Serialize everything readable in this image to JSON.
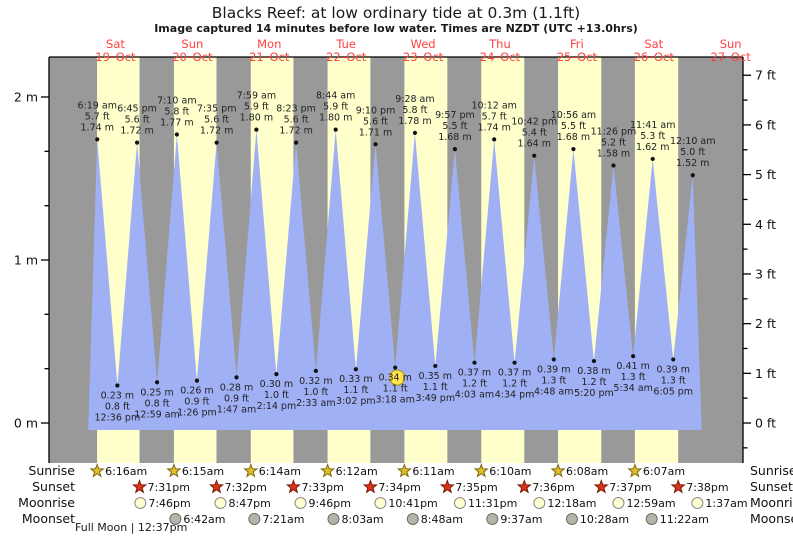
{
  "colors": {
    "day_band": "#ffffcc",
    "night_band": "#999999",
    "tide_fill": "#a0b0f5",
    "date_label": "#ff3f3f",
    "title_text": "#1a1a1a",
    "tide_label_text": "#222222",
    "sunrise_star": "#e2bf2a",
    "sunrise_star_stroke": "#7a6a10",
    "sunset_star": "#dd3318",
    "sunset_star_stroke": "#7a1a08",
    "moonrise_fill": "#ffffd0",
    "moonrise_stroke": "#8a8a8a",
    "moonset_fill": "#b4b4aa",
    "moonset_stroke": "#6e6e66",
    "current_marker": "#ffe44f",
    "current_marker_stroke": "#b08d00",
    "frame": "#000000",
    "dot": "#111111"
  },
  "chart_data": {
    "type": "area",
    "title": "Blacks Reef: at low  ordinary tide at 0.3m (1.1ft)",
    "subtitle": "Image captured 14 minutes before low water. Times are NZDT (UTC +13.0hrs)",
    "footnote": "Full Moon | 12:37pm",
    "y_axis": {
      "left_unit": "m",
      "left_ticks": [
        "0 m",
        "1 m",
        "2 m"
      ],
      "right_unit": "ft",
      "right_ticks": [
        "0 ft",
        "1 ft",
        "2 ft",
        "3 ft",
        "4 ft",
        "5 ft",
        "6 ft",
        "7 ft"
      ]
    },
    "days": [
      {
        "name": "Sat",
        "date": "19–Oct"
      },
      {
        "name": "Sun",
        "date": "20–Oct"
      },
      {
        "name": "Mon",
        "date": "21–Oct"
      },
      {
        "name": "Tue",
        "date": "22–Oct"
      },
      {
        "name": "Wed",
        "date": "23–Oct"
      },
      {
        "name": "Thu",
        "date": "24–Oct"
      },
      {
        "name": "Fri",
        "date": "25–Oct"
      },
      {
        "name": "Sat",
        "date": "26–Oct"
      },
      {
        "name": "Sun",
        "date": "27–Oct"
      }
    ],
    "tides": [
      {
        "kind": "H",
        "day": 0,
        "time": "6:19 am",
        "ft": "5.7 ft",
        "m": "1.74 m"
      },
      {
        "kind": "L",
        "day": 0,
        "time": "12:36 pm",
        "ft": "0.8 ft",
        "m": "0.23 m"
      },
      {
        "kind": "H",
        "day": 0,
        "time": "6:45 pm",
        "ft": "5.6 ft",
        "m": "1.72 m"
      },
      {
        "kind": "L",
        "day": 1,
        "time": "12:59 am",
        "ft": "0.8 ft",
        "m": "0.25 m"
      },
      {
        "kind": "H",
        "day": 1,
        "time": "7:10 am",
        "ft": "5.8 ft",
        "m": "1.77 m"
      },
      {
        "kind": "L",
        "day": 1,
        "time": "1:26 pm",
        "ft": "0.9 ft",
        "m": "0.26 m"
      },
      {
        "kind": "H",
        "day": 1,
        "time": "7:35 pm",
        "ft": "5.6 ft",
        "m": "1.72 m"
      },
      {
        "kind": "L",
        "day": 2,
        "time": "1:47 am",
        "ft": "0.9 ft",
        "m": "0.28 m"
      },
      {
        "kind": "H",
        "day": 2,
        "time": "7:59 am",
        "ft": "5.9 ft",
        "m": "1.80 m"
      },
      {
        "kind": "L",
        "day": 2,
        "time": "2:14 pm",
        "ft": "1.0 ft",
        "m": "0.30 m"
      },
      {
        "kind": "H",
        "day": 2,
        "time": "8:23 pm",
        "ft": "5.6 ft",
        "m": "1.72 m"
      },
      {
        "kind": "L",
        "day": 3,
        "time": "2:33 am",
        "ft": "1.0 ft",
        "m": "0.32 m"
      },
      {
        "kind": "H",
        "day": 3,
        "time": "8:44 am",
        "ft": "5.9 ft",
        "m": "1.80 m"
      },
      {
        "kind": "L",
        "day": 3,
        "time": "3:02 pm",
        "ft": "1.1 ft",
        "m": "0.33 m"
      },
      {
        "kind": "H",
        "day": 3,
        "time": "9:10 pm",
        "ft": "5.6 ft",
        "m": "1.71 m"
      },
      {
        "kind": "L",
        "day": 4,
        "time": "3:18 am",
        "ft": "1.1 ft",
        "m": "0.34 m",
        "current": true
      },
      {
        "kind": "H",
        "day": 4,
        "time": "9:28 am",
        "ft": "5.8 ft",
        "m": "1.78 m"
      },
      {
        "kind": "L",
        "day": 4,
        "time": "3:49 pm",
        "ft": "1.1 ft",
        "m": "0.35 m"
      },
      {
        "kind": "H",
        "day": 4,
        "time": "9:57 pm",
        "ft": "5.5 ft",
        "m": "1.68 m"
      },
      {
        "kind": "L",
        "day": 5,
        "time": "4:03 am",
        "ft": "1.2 ft",
        "m": "0.37 m"
      },
      {
        "kind": "H",
        "day": 5,
        "time": "10:12 am",
        "ft": "5.7 ft",
        "m": "1.74 m"
      },
      {
        "kind": "L",
        "day": 5,
        "time": "4:34 pm",
        "ft": "1.2 ft",
        "m": "0.37 m"
      },
      {
        "kind": "H",
        "day": 5,
        "time": "10:42 pm",
        "ft": "5.4 ft",
        "m": "1.64 m"
      },
      {
        "kind": "L",
        "day": 6,
        "time": "4:48 am",
        "ft": "1.3 ft",
        "m": "0.39 m"
      },
      {
        "kind": "H",
        "day": 6,
        "time": "10:56 am",
        "ft": "5.5 ft",
        "m": "1.68 m"
      },
      {
        "kind": "L",
        "day": 6,
        "time": "5:20 pm",
        "ft": "1.2 ft",
        "m": "0.38 m"
      },
      {
        "kind": "H",
        "day": 6,
        "time": "11:26 pm",
        "ft": "5.2 ft",
        "m": "1.58 m"
      },
      {
        "kind": "L",
        "day": 7,
        "time": "5:34 am",
        "ft": "1.3 ft",
        "m": "0.41 m"
      },
      {
        "kind": "H",
        "day": 7,
        "time": "11:41 am",
        "ft": "5.3 ft",
        "m": "1.62 m"
      },
      {
        "kind": "L",
        "day": 7,
        "time": "6:05 pm",
        "ft": "1.3 ft",
        "m": "0.39 m"
      },
      {
        "kind": "H",
        "day": 8,
        "time": "12:10 am",
        "ft": "5.0 ft",
        "m": "1.52 m"
      }
    ],
    "sun_moon_rows": [
      {
        "label": "Sunrise",
        "icon": "sunrise-star-icon",
        "items": [
          {
            "day": 0,
            "time": "6:16am"
          },
          {
            "day": 1,
            "time": "6:15am"
          },
          {
            "day": 2,
            "time": "6:14am"
          },
          {
            "day": 3,
            "time": "6:12am"
          },
          {
            "day": 4,
            "time": "6:11am"
          },
          {
            "day": 5,
            "time": "6:10am"
          },
          {
            "day": 6,
            "time": "6:08am"
          },
          {
            "day": 7,
            "time": "6:07am"
          }
        ]
      },
      {
        "label": "Sunset",
        "icon": "sunset-star-icon",
        "items": [
          {
            "day": 0,
            "time": "7:31pm"
          },
          {
            "day": 1,
            "time": "7:32pm"
          },
          {
            "day": 2,
            "time": "7:33pm"
          },
          {
            "day": 3,
            "time": "7:34pm"
          },
          {
            "day": 4,
            "time": "7:35pm"
          },
          {
            "day": 5,
            "time": "7:36pm"
          },
          {
            "day": 6,
            "time": "7:37pm"
          },
          {
            "day": 7,
            "time": "7:38pm"
          }
        ]
      },
      {
        "label": "Moonrise",
        "icon": "moonrise-circle-icon",
        "items": [
          {
            "day": 0,
            "time": "7:46pm"
          },
          {
            "day": 1,
            "time": "8:47pm"
          },
          {
            "day": 2,
            "time": "9:46pm"
          },
          {
            "day": 3,
            "time": "10:41pm"
          },
          {
            "day": 4,
            "time": "11:31pm"
          },
          {
            "day": 6,
            "time": "12:18am"
          },
          {
            "day": 7,
            "time": "12:59am"
          },
          {
            "day": 8,
            "time": "1:37am"
          }
        ]
      },
      {
        "label": "Moonset",
        "icon": "moonset-circle-icon",
        "items": [
          {
            "day": 1,
            "time": "6:42am"
          },
          {
            "day": 2,
            "time": "7:21am"
          },
          {
            "day": 3,
            "time": "8:03am"
          },
          {
            "day": 4,
            "time": "8:48am"
          },
          {
            "day": 5,
            "time": "9:37am"
          },
          {
            "day": 6,
            "time": "10:28am"
          },
          {
            "day": 7,
            "time": "11:22am"
          }
        ]
      }
    ]
  }
}
